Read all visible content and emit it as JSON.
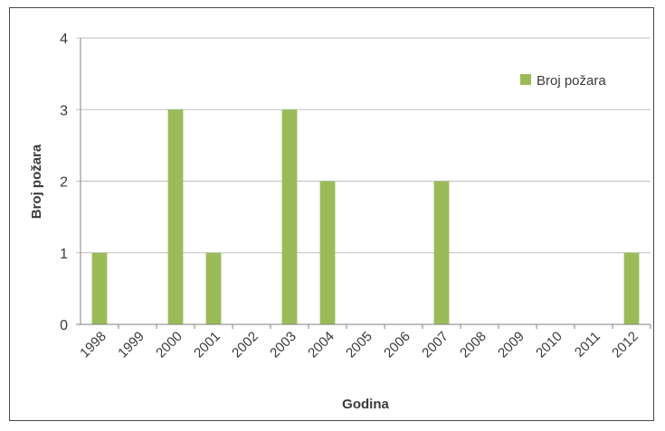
{
  "chart_data": {
    "type": "bar",
    "title": "",
    "xlabel": "Godina",
    "ylabel": "Broj požara",
    "categories": [
      "1998",
      "1999",
      "2000",
      "2001",
      "2002",
      "2003",
      "2004",
      "2005",
      "2006",
      "2007",
      "2008",
      "2009",
      "2010",
      "2011",
      "2012"
    ],
    "series": [
      {
        "name": "Broj požara",
        "values": [
          1,
          0,
          3,
          1,
          0,
          3,
          2,
          0,
          0,
          2,
          0,
          0,
          0,
          0,
          1
        ],
        "color": "#9bbb59"
      }
    ],
    "ylim": [
      0,
      4
    ],
    "yticks": [
      "0",
      "1",
      "2",
      "3",
      "4"
    ],
    "grid": true,
    "legend_position": "top-right",
    "gridline_color": "#bfbfbf",
    "axis_color": "#808080"
  }
}
